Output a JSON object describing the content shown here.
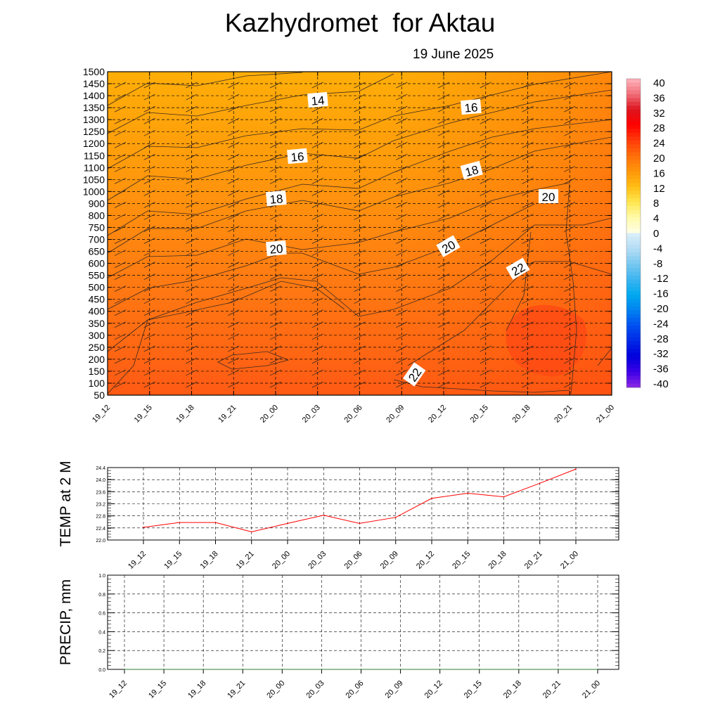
{
  "header": {
    "title": "Kazhydromet  for Aktau",
    "date": "19 June 2025"
  },
  "time_labels": [
    "19_12",
    "19_15",
    "19_18",
    "19_21",
    "20_00",
    "20_03",
    "20_06",
    "20_09",
    "20_12",
    "20_15",
    "20_18",
    "20_21",
    "21_00"
  ],
  "chart_data": [
    {
      "type": "heatmap",
      "name": "temperature-cross-section",
      "x": [
        "19_12",
        "19_15",
        "19_18",
        "19_21",
        "20_00",
        "20_03",
        "20_06",
        "20_09",
        "20_12",
        "20_15",
        "20_18",
        "20_21",
        "21_00"
      ],
      "y_ticks": [
        50,
        100,
        150,
        200,
        250,
        300,
        350,
        400,
        450,
        500,
        550,
        600,
        650,
        700,
        750,
        800,
        900,
        1000,
        1050,
        1100,
        1150,
        1200,
        1250,
        1300,
        1350,
        1400,
        1450,
        1500
      ],
      "ylim": [
        50,
        1500
      ],
      "contour_labels": [
        "14",
        "16",
        "16",
        "18",
        "18",
        "20",
        "20",
        "20",
        "22",
        "22"
      ],
      "colorbar": {
        "ticks": [
          "40",
          "36",
          "32",
          "28",
          "24",
          "20",
          "16",
          "12",
          "8",
          "4",
          "0",
          "-4",
          "-8",
          "-12",
          "-16",
          "-20",
          "-24",
          "-28",
          "-32",
          "-36",
          "-40"
        ],
        "range": [
          -40,
          40
        ]
      },
      "values_approx_surface": [
        22.5,
        22.6,
        22.6,
        22.3,
        22.6,
        22.8,
        22.6,
        22.8,
        23.4,
        23.6,
        23.5,
        23.9,
        24.4
      ],
      "grid": true
    },
    {
      "type": "line",
      "ylabel": "TEMP at 2 M",
      "ylim": [
        22.0,
        24.4
      ],
      "y_ticks": [
        "24.4",
        "24.0",
        "23.6",
        "23.2",
        "22.8",
        "22.4",
        "22.0"
      ],
      "x": [
        "19_12",
        "19_15",
        "19_18",
        "19_21",
        "20_00",
        "20_03",
        "20_06",
        "20_09",
        "20_12",
        "20_15",
        "20_18",
        "20_21",
        "21_00"
      ],
      "series": [
        {
          "values": [
            22.42,
            22.58,
            22.58,
            22.27,
            22.55,
            22.82,
            22.55,
            22.75,
            23.38,
            23.55,
            23.43,
            23.88,
            24.35
          ],
          "color": "#ff0000"
        }
      ],
      "grid": true
    },
    {
      "type": "line",
      "ylabel": "PRECIP, mm",
      "ylim": [
        0.0,
        1.0
      ],
      "y_ticks": [
        "1.0",
        "0.8",
        "0.6",
        "0.4",
        "0.2",
        "0.0"
      ],
      "x": [
        "19_12",
        "19_15",
        "19_18",
        "19_21",
        "20_00",
        "20_03",
        "20_06",
        "20_09",
        "20_12",
        "20_15",
        "20_18",
        "20_21",
        "21_00"
      ],
      "series": [
        {
          "values": [
            0,
            0,
            0,
            0,
            0,
            0,
            0,
            0,
            0,
            0,
            0,
            0,
            0
          ],
          "color": "#2e7d32"
        }
      ],
      "grid": true
    }
  ]
}
